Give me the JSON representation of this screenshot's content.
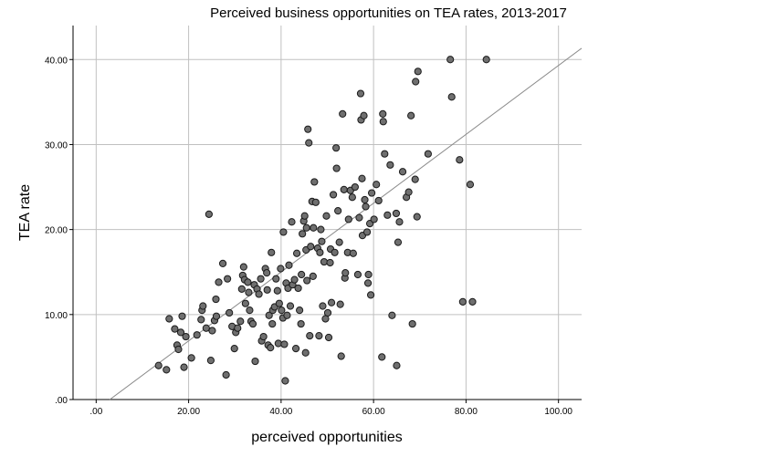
{
  "chart_data": {
    "type": "scatter",
    "title": "Perceived business opportunities on TEA rates, 2013-2017",
    "xlabel": "perceived opportunities",
    "ylabel": "TEA rate",
    "xlim": [
      -5,
      105
    ],
    "ylim": [
      0,
      44
    ],
    "x_ticks": [
      0,
      20,
      40,
      60,
      80,
      100
    ],
    "y_ticks": [
      0,
      10,
      20,
      30,
      40
    ],
    "x_tick_labels": [
      ".00",
      "20.00",
      "40.00",
      "60.00",
      "80.00",
      "100.00"
    ],
    "y_tick_labels": [
      ".00",
      "10.00",
      "20.00",
      "30.00",
      "40.00"
    ],
    "grid": true,
    "colors": {
      "point_fill": "#6f6f6f",
      "point_stroke": "#1a1a1a",
      "grid": "#c0c0c0",
      "fit_line": "#8a8a8a"
    },
    "fit_line": {
      "intercept": -1.2,
      "slope": 0.405
    },
    "points": [
      [
        13.5,
        4.0
      ],
      [
        15.2,
        3.5
      ],
      [
        15.8,
        9.5
      ],
      [
        17.0,
        8.3
      ],
      [
        17.5,
        6.4
      ],
      [
        17.8,
        5.9
      ],
      [
        18.3,
        7.9
      ],
      [
        18.6,
        9.8
      ],
      [
        19.0,
        3.8
      ],
      [
        19.4,
        7.4
      ],
      [
        20.6,
        4.9
      ],
      [
        21.8,
        7.6
      ],
      [
        22.7,
        9.4
      ],
      [
        22.9,
        10.5
      ],
      [
        23.1,
        11.0
      ],
      [
        23.8,
        8.4
      ],
      [
        24.4,
        21.8
      ],
      [
        24.8,
        4.6
      ],
      [
        25.1,
        8.1
      ],
      [
        25.6,
        9.3
      ],
      [
        25.9,
        11.8
      ],
      [
        26.0,
        9.8
      ],
      [
        26.5,
        13.8
      ],
      [
        27.4,
        16.0
      ],
      [
        28.1,
        2.9
      ],
      [
        28.4,
        14.2
      ],
      [
        28.8,
        10.2
      ],
      [
        29.4,
        8.6
      ],
      [
        29.9,
        6.0
      ],
      [
        30.2,
        7.9
      ],
      [
        30.6,
        8.4
      ],
      [
        31.2,
        9.2
      ],
      [
        31.5,
        13.0
      ],
      [
        31.7,
        14.6
      ],
      [
        31.9,
        15.6
      ],
      [
        32.1,
        14.1
      ],
      [
        32.3,
        11.3
      ],
      [
        32.8,
        13.8
      ],
      [
        33.0,
        12.6
      ],
      [
        33.2,
        10.5
      ],
      [
        33.5,
        9.2
      ],
      [
        33.9,
        8.9
      ],
      [
        34.2,
        13.5
      ],
      [
        34.4,
        4.5
      ],
      [
        34.8,
        13.0
      ],
      [
        35.2,
        12.4
      ],
      [
        35.6,
        14.2
      ],
      [
        35.8,
        6.9
      ],
      [
        36.2,
        7.4
      ],
      [
        36.6,
        15.4
      ],
      [
        36.9,
        14.9
      ],
      [
        37.0,
        12.9
      ],
      [
        37.2,
        6.4
      ],
      [
        37.4,
        9.9
      ],
      [
        37.7,
        6.1
      ],
      [
        37.9,
        17.3
      ],
      [
        38.1,
        8.9
      ],
      [
        38.2,
        10.5
      ],
      [
        38.6,
        10.9
      ],
      [
        38.9,
        14.2
      ],
      [
        39.2,
        12.8
      ],
      [
        39.4,
        6.6
      ],
      [
        39.6,
        11.3
      ],
      [
        39.9,
        15.4
      ],
      [
        40.1,
        10.5
      ],
      [
        40.4,
        9.6
      ],
      [
        40.5,
        19.7
      ],
      [
        40.7,
        6.5
      ],
      [
        40.9,
        2.2
      ],
      [
        41.1,
        13.7
      ],
      [
        41.3,
        9.9
      ],
      [
        41.5,
        13.1
      ],
      [
        41.7,
        15.8
      ],
      [
        42.0,
        11.0
      ],
      [
        42.3,
        20.9
      ],
      [
        42.5,
        13.5
      ],
      [
        42.9,
        14.1
      ],
      [
        43.2,
        6.0
      ],
      [
        43.4,
        17.2
      ],
      [
        43.7,
        13.1
      ],
      [
        44.0,
        10.5
      ],
      [
        44.3,
        8.9
      ],
      [
        44.4,
        14.7
      ],
      [
        44.6,
        19.5
      ],
      [
        44.9,
        21.0
      ],
      [
        45.1,
        21.6
      ],
      [
        45.3,
        5.5
      ],
      [
        45.4,
        17.6
      ],
      [
        45.5,
        20.2
      ],
      [
        45.6,
        14.0
      ],
      [
        45.8,
        31.8
      ],
      [
        46.0,
        30.2
      ],
      [
        46.2,
        7.5
      ],
      [
        46.4,
        18.0
      ],
      [
        46.7,
        23.3
      ],
      [
        46.9,
        14.5
      ],
      [
        47.0,
        20.2
      ],
      [
        47.2,
        25.6
      ],
      [
        47.5,
        23.2
      ],
      [
        47.9,
        17.8
      ],
      [
        48.2,
        7.5
      ],
      [
        48.4,
        17.3
      ],
      [
        48.6,
        20.0
      ],
      [
        48.8,
        18.6
      ],
      [
        49.0,
        11.0
      ],
      [
        49.3,
        16.2
      ],
      [
        49.6,
        9.5
      ],
      [
        49.8,
        21.6
      ],
      [
        50.1,
        10.2
      ],
      [
        50.3,
        7.3
      ],
      [
        50.6,
        16.1
      ],
      [
        50.7,
        17.7
      ],
      [
        50.9,
        11.4
      ],
      [
        51.3,
        24.1
      ],
      [
        51.6,
        17.3
      ],
      [
        51.9,
        29.6
      ],
      [
        52.0,
        27.2
      ],
      [
        52.3,
        22.2
      ],
      [
        52.6,
        18.5
      ],
      [
        52.8,
        11.2
      ],
      [
        53.0,
        5.1
      ],
      [
        53.3,
        33.6
      ],
      [
        53.6,
        24.7
      ],
      [
        53.8,
        14.3
      ],
      [
        53.9,
        14.9
      ],
      [
        54.4,
        17.3
      ],
      [
        54.6,
        21.2
      ],
      [
        55.0,
        24.6
      ],
      [
        55.4,
        23.8
      ],
      [
        55.6,
        17.2
      ],
      [
        56.0,
        25.0
      ],
      [
        56.6,
        14.7
      ],
      [
        56.9,
        21.4
      ],
      [
        57.2,
        36.0
      ],
      [
        57.3,
        32.9
      ],
      [
        57.5,
        26.0
      ],
      [
        57.6,
        19.3
      ],
      [
        57.9,
        33.4
      ],
      [
        58.1,
        23.5
      ],
      [
        58.3,
        22.7
      ],
      [
        58.6,
        19.7
      ],
      [
        58.8,
        13.7
      ],
      [
        58.9,
        14.7
      ],
      [
        59.2,
        20.7
      ],
      [
        59.4,
        12.3
      ],
      [
        59.6,
        24.3
      ],
      [
        60.1,
        21.2
      ],
      [
        60.6,
        25.3
      ],
      [
        61.1,
        23.4
      ],
      [
        61.8,
        5.0
      ],
      [
        62.0,
        33.6
      ],
      [
        62.1,
        32.7
      ],
      [
        62.4,
        28.9
      ],
      [
        63.0,
        21.7
      ],
      [
        63.6,
        27.6
      ],
      [
        64.0,
        9.9
      ],
      [
        64.9,
        21.9
      ],
      [
        65.0,
        4.0
      ],
      [
        65.3,
        18.5
      ],
      [
        65.6,
        20.9
      ],
      [
        66.3,
        26.8
      ],
      [
        67.1,
        23.8
      ],
      [
        67.6,
        24.4
      ],
      [
        68.1,
        33.4
      ],
      [
        68.4,
        8.9
      ],
      [
        69.0,
        25.9
      ],
      [
        69.1,
        37.4
      ],
      [
        69.4,
        21.5
      ],
      [
        69.6,
        38.6
      ],
      [
        71.8,
        28.9
      ],
      [
        76.6,
        40.0
      ],
      [
        76.9,
        35.6
      ],
      [
        78.6,
        28.2
      ],
      [
        79.3,
        11.5
      ],
      [
        80.9,
        25.3
      ],
      [
        81.4,
        11.5
      ],
      [
        84.4,
        40.0
      ]
    ]
  }
}
